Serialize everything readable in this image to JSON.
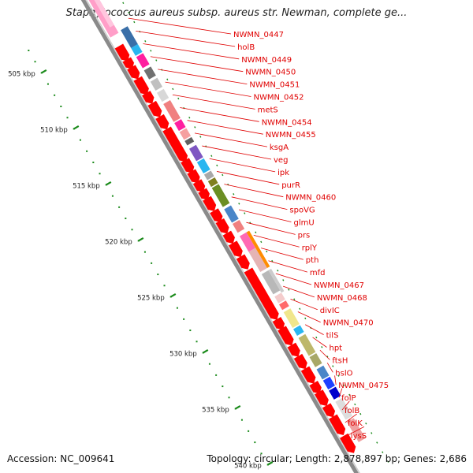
{
  "title": "Staphylococcus aureus subsp. aureus str. Newman, complete ge...",
  "footer": {
    "accession": "Accession: NC_009641",
    "summary": "Topology: circular; Length: 2,878,897 bp; Genes: 2,686"
  },
  "colors": {
    "gene_label": "#e00000",
    "forward_gene": "#ff0000",
    "ruler_tick": "#1a8a1a",
    "backbone": "#8a8a8a"
  },
  "ruler": [
    {
      "label": "505 kbp",
      "kbp": 505
    },
    {
      "label": "510 kbp",
      "kbp": 510
    },
    {
      "label": "515 kbp",
      "kbp": 515
    },
    {
      "label": "520 kbp",
      "kbp": 520
    },
    {
      "label": "525 kbp",
      "kbp": 525
    },
    {
      "label": "530 kbp",
      "kbp": 530
    },
    {
      "label": "535 kbp",
      "kbp": 535
    },
    {
      "label": "540 kbp",
      "kbp": 540
    }
  ],
  "genes": [
    "NWMN_0447",
    "holB",
    "NWMN_0449",
    "NWMN_0450",
    "NWMN_0451",
    "NWMN_0452",
    "metS",
    "NWMN_0454",
    "NWMN_0455",
    "ksgA",
    "veg",
    "ipk",
    "purR",
    "NWMN_0460",
    "spoVG",
    "glmU",
    "prs",
    "rplY",
    "pth",
    "mfd",
    "NWMN_0467",
    "NWMN_0468",
    "divIC",
    "NWMN_0470",
    "tilS",
    "hpt",
    "ftsH",
    "hslO",
    "NWMN_0475",
    "folP",
    "folB",
    "folK",
    "lysS"
  ]
}
